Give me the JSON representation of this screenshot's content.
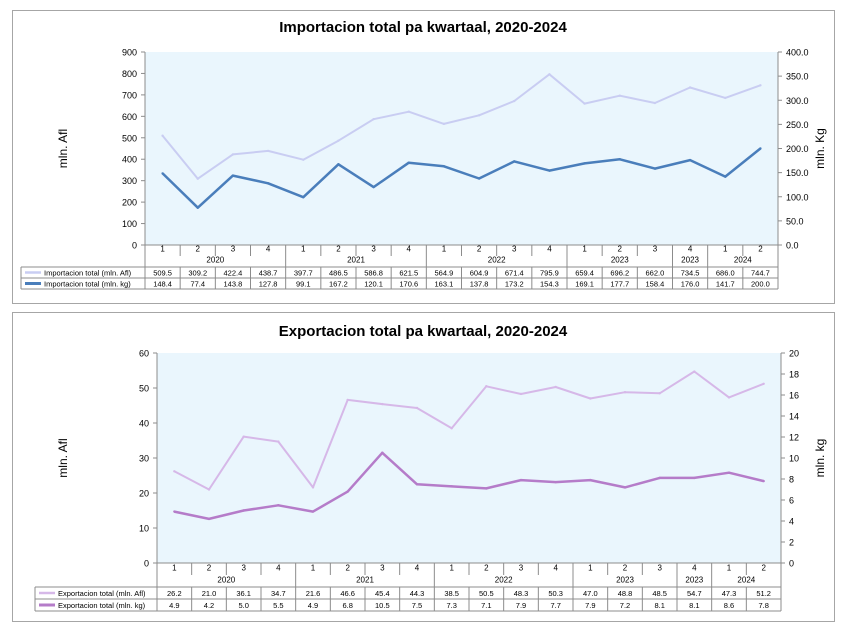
{
  "chart_data": [
    {
      "type": "line",
      "title": "Importacion total pa kwartaal, 2020-2024",
      "ylabel_left": "mln. Afl",
      "ylabel_right": "mln. Kg",
      "ylim_left": [
        0,
        900
      ],
      "ylim_right": [
        0,
        400
      ],
      "yticks_left": [
        "900",
        "800",
        "700",
        "600",
        "500",
        "400",
        "300",
        "200",
        "100",
        "0"
      ],
      "yticks_right": [
        "400.0",
        "350.0",
        "300.0",
        "250.0",
        "200.0",
        "150.0",
        "100.0",
        "50.0",
        "0.0"
      ],
      "quarters": [
        "1",
        "2",
        "3",
        "4",
        "1",
        "2",
        "3",
        "4",
        "1",
        "2",
        "3",
        "4",
        "1",
        "2",
        "3",
        "4",
        "1",
        "2"
      ],
      "year_groups": [
        {
          "label": "2020",
          "span": 4
        },
        {
          "label": "2021",
          "span": 4
        },
        {
          "label": "2022",
          "span": 4
        },
        {
          "label": "2023",
          "span": 3
        },
        {
          "label": "2023",
          "span": 1
        },
        {
          "label": "2024",
          "span": 2
        }
      ],
      "grid": false,
      "plot_background": "#eaf6fd",
      "series": [
        {
          "name": "Importacion total (mln. Afl)",
          "axis": "left",
          "color": "#c9cdf2",
          "width": 2,
          "values": [
            509.5,
            309.2,
            422.4,
            438.7,
            397.7,
            486.5,
            586.8,
            621.5,
            564.9,
            604.9,
            671.4,
            795.9,
            659.4,
            696.2,
            662.0,
            734.5,
            686.0,
            744.7
          ],
          "labels": [
            "509.5",
            "309.2",
            "422.4",
            "438.7",
            "397.7",
            "486.5",
            "586.8",
            "621.5",
            "564.9",
            "604.9",
            "671.4",
            "795.9",
            "659.4",
            "696.2",
            "662.0",
            "734.5",
            "686.0",
            "744.7"
          ]
        },
        {
          "name": "Importacion total (mln. kg)",
          "axis": "right",
          "color": "#4a7ebb",
          "width": 2.5,
          "values": [
            148.4,
            77.4,
            143.8,
            127.8,
            99.1,
            167.2,
            120.1,
            170.6,
            163.1,
            137.8,
            173.2,
            154.3,
            169.1,
            177.7,
            158.4,
            176.0,
            141.7,
            200.0
          ],
          "labels": [
            "148.4",
            "77.4",
            "143.8",
            "127.8",
            "99.1",
            "167.2",
            "120.1",
            "170.6",
            "163.1",
            "137.8",
            "173.2",
            "154.3",
            "169.1",
            "177.7",
            "158.4",
            "176.0",
            "141.7",
            "200.0"
          ]
        }
      ]
    },
    {
      "type": "line",
      "title": "Exportacion total pa kwartaal, 2020-2024",
      "ylabel_left": "mln. Afl",
      "ylabel_right": "mln. kg",
      "ylim_left": [
        0,
        60
      ],
      "ylim_right": [
        0,
        20
      ],
      "yticks_left": [
        "60",
        "50",
        "40",
        "30",
        "20",
        "10",
        "0"
      ],
      "yticks_right": [
        "20",
        "18",
        "16",
        "14",
        "12",
        "10",
        "8",
        "6",
        "4",
        "2",
        "0"
      ],
      "quarters": [
        "1",
        "2",
        "3",
        "4",
        "1",
        "2",
        "3",
        "4",
        "1",
        "2",
        "3",
        "4",
        "1",
        "2",
        "3",
        "4",
        "1",
        "2"
      ],
      "year_groups": [
        {
          "label": "2020",
          "span": 4
        },
        {
          "label": "2021",
          "span": 4
        },
        {
          "label": "2022",
          "span": 4
        },
        {
          "label": "2023",
          "span": 3
        },
        {
          "label": "2023",
          "span": 1
        },
        {
          "label": "2024",
          "span": 2
        }
      ],
      "grid": false,
      "plot_background": "#eaf6fd",
      "series": [
        {
          "name": "Exportacion total (mln. Afl)",
          "axis": "left",
          "color": "#d6b8e8",
          "width": 2,
          "values": [
            26.2,
            21.0,
            36.1,
            34.7,
            21.6,
            46.6,
            45.4,
            44.3,
            38.5,
            50.5,
            48.3,
            50.3,
            47.0,
            48.8,
            48.5,
            54.7,
            47.3,
            51.2
          ],
          "labels": [
            "26.2",
            "21.0",
            "36.1",
            "34.7",
            "21.6",
            "46.6",
            "45.4",
            "44.3",
            "38.5",
            "50.5",
            "48.3",
            "50.3",
            "47.0",
            "48.8",
            "48.5",
            "54.7",
            "47.3",
            "51.2"
          ]
        },
        {
          "name": "Exportacion total (mln. kg)",
          "axis": "right",
          "color": "#b57cc9",
          "width": 2.5,
          "values": [
            4.9,
            4.2,
            5.0,
            5.5,
            4.9,
            6.8,
            10.5,
            7.5,
            7.3,
            7.1,
            7.9,
            7.7,
            7.9,
            7.2,
            8.1,
            8.1,
            8.6,
            7.8
          ],
          "labels": [
            "4.9",
            "4.2",
            "5.0",
            "5.5",
            "4.9",
            "6.8",
            "10.5",
            "7.5",
            "7.3",
            "7.1",
            "7.9",
            "7.7",
            "7.9",
            "7.2",
            "8.1",
            "8.1",
            "8.6",
            "7.8"
          ]
        }
      ]
    }
  ]
}
